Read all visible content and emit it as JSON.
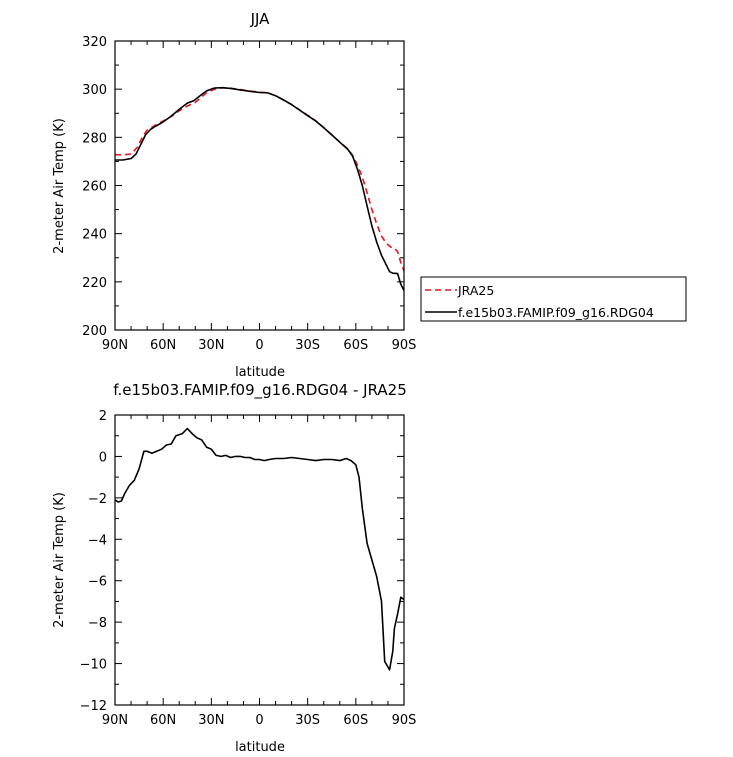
{
  "chart_data": [
    {
      "type": "line",
      "title": "JJA",
      "xlabel": "latitude",
      "ylabel": "2-meter Air Temp (K)",
      "xlim": [
        90,
        -90
      ],
      "ylim": [
        200,
        320
      ],
      "x_ticks": [
        {
          "value": 90,
          "label": "90N"
        },
        {
          "value": 60,
          "label": "60N"
        },
        {
          "value": 30,
          "label": "30N"
        },
        {
          "value": 0,
          "label": "0"
        },
        {
          "value": -30,
          "label": "30S"
        },
        {
          "value": -60,
          "label": "60S"
        },
        {
          "value": -90,
          "label": "90S"
        }
      ],
      "y_ticks": [
        200,
        220,
        240,
        260,
        280,
        300,
        320
      ],
      "legend_position": "right",
      "series": [
        {
          "name": "JRA25",
          "color": "#e8151b",
          "dash": "dashed",
          "points": [
            [
              90,
              272.8
            ],
            [
              85,
              272.7
            ],
            [
              80,
              273.1
            ],
            [
              76,
              276
            ],
            [
              73,
              280
            ],
            [
              70,
              283
            ],
            [
              65,
              285
            ],
            [
              60,
              286.8
            ],
            [
              55,
              288.6
            ],
            [
              50,
              291
            ],
            [
              45,
              293
            ],
            [
              40,
              294.5
            ],
            [
              37,
              296.2
            ],
            [
              33,
              298.5
            ],
            [
              28,
              300
            ],
            [
              23,
              300.6
            ],
            [
              18,
              300.4
            ],
            [
              12,
              299.8
            ],
            [
              6,
              299.2
            ],
            [
              0,
              298.8
            ],
            [
              -5,
              298.5
            ],
            [
              -10,
              297.3
            ],
            [
              -15,
              295.5
            ],
            [
              -20,
              293.6
            ],
            [
              -25,
              291.4
            ],
            [
              -30,
              289.2
            ],
            [
              -35,
              286.9
            ],
            [
              -40,
              284.1
            ],
            [
              -45,
              281
            ],
            [
              -50,
              278
            ],
            [
              -55,
              275.3
            ],
            [
              -58,
              272.5
            ],
            [
              -61,
              268.5
            ],
            [
              -64,
              263.5
            ],
            [
              -67,
              257
            ],
            [
              -70,
              250
            ],
            [
              -73,
              244
            ],
            [
              -76,
              239
            ],
            [
              -79,
              236
            ],
            [
              -82,
              234.3
            ],
            [
              -84,
              234
            ],
            [
              -86,
              232.5
            ],
            [
              -88,
              228
            ],
            [
              -90,
              224.5
            ]
          ]
        },
        {
          "name": "f.e15b03.FAMIP.f09_g16.RDG04",
          "color": "#000000",
          "dash": "solid",
          "points": [
            [
              90,
              270.6
            ],
            [
              85,
              270.6
            ],
            [
              80,
              271.2
            ],
            [
              77,
              273
            ],
            [
              74,
              277
            ],
            [
              71,
              281
            ],
            [
              68,
              283.2
            ],
            [
              65,
              284.5
            ],
            [
              60,
              286.4
            ],
            [
              55,
              288.8
            ],
            [
              50,
              291.6
            ],
            [
              45,
              294.2
            ],
            [
              41,
              295.2
            ],
            [
              37,
              297.3
            ],
            [
              33,
              299.3
            ],
            [
              28,
              300.5
            ],
            [
              23,
              300.6
            ],
            [
              18,
              300.3
            ],
            [
              12,
              299.7
            ],
            [
              6,
              299.1
            ],
            [
              0,
              298.6
            ],
            [
              -5,
              298.5
            ],
            [
              -10,
              297.3
            ],
            [
              -15,
              295.5
            ],
            [
              -20,
              293.6
            ],
            [
              -25,
              291.3
            ],
            [
              -30,
              289
            ],
            [
              -35,
              286.8
            ],
            [
              -40,
              284
            ],
            [
              -45,
              281
            ],
            [
              -50,
              278
            ],
            [
              -55,
              275
            ],
            [
              -58,
              272.2
            ],
            [
              -61,
              266.8
            ],
            [
              -64,
              260
            ],
            [
              -67,
              251.5
            ],
            [
              -70,
              243.2
            ],
            [
              -73,
              236.5
            ],
            [
              -76,
              231
            ],
            [
              -79,
              227
            ],
            [
              -81,
              224.2
            ],
            [
              -83,
              223.6
            ],
            [
              -86,
              223.4
            ],
            [
              -88,
              219
            ],
            [
              -90,
              216.4
            ]
          ]
        }
      ]
    },
    {
      "type": "line",
      "title": "f.e15b03.FAMIP.f09_g16.RDG04 - JRA25",
      "xlabel": "latitude",
      "ylabel": "2-meter Air Temp (K)",
      "xlim": [
        90,
        -90
      ],
      "ylim": [
        -12,
        2
      ],
      "x_ticks": [
        {
          "value": 90,
          "label": "90N"
        },
        {
          "value": 60,
          "label": "60N"
        },
        {
          "value": 30,
          "label": "30N"
        },
        {
          "value": 0,
          "label": "0"
        },
        {
          "value": -30,
          "label": "30S"
        },
        {
          "value": -60,
          "label": "60S"
        },
        {
          "value": -90,
          "label": "90S"
        }
      ],
      "y_ticks": [
        -12,
        -10,
        -8,
        -6,
        -4,
        -2,
        0,
        2
      ],
      "series": [
        {
          "color": "#000000",
          "dash": "solid",
          "points": [
            [
              90,
              -2.1
            ],
            [
              88,
              -2.2
            ],
            [
              86,
              -2.15
            ],
            [
              84,
              -1.8
            ],
            [
              81,
              -1.4
            ],
            [
              78,
              -1.15
            ],
            [
              75,
              -0.6
            ],
            [
              72,
              0.25
            ],
            [
              70,
              0.25
            ],
            [
              67,
              0.15
            ],
            [
              64,
              0.25
            ],
            [
              61,
              0.35
            ],
            [
              58,
              0.55
            ],
            [
              55,
              0.6
            ],
            [
              52,
              1
            ],
            [
              48,
              1.1
            ],
            [
              45,
              1.35
            ],
            [
              42,
              1.1
            ],
            [
              39,
              0.9
            ],
            [
              36,
              0.8
            ],
            [
              33,
              0.45
            ],
            [
              30,
              0.35
            ],
            [
              27,
              0.05
            ],
            [
              24,
              0
            ],
            [
              21,
              0.05
            ],
            [
              18,
              -0.05
            ],
            [
              15,
              0
            ],
            [
              12,
              0
            ],
            [
              9,
              -0.05
            ],
            [
              6,
              -0.05
            ],
            [
              3,
              -0.15
            ],
            [
              0,
              -0.15
            ],
            [
              -3,
              -0.2
            ],
            [
              -6,
              -0.15
            ],
            [
              -10,
              -0.1
            ],
            [
              -15,
              -0.1
            ],
            [
              -20,
              -0.05
            ],
            [
              -25,
              -0.1
            ],
            [
              -30,
              -0.15
            ],
            [
              -35,
              -0.2
            ],
            [
              -40,
              -0.15
            ],
            [
              -45,
              -0.15
            ],
            [
              -50,
              -0.2
            ],
            [
              -54,
              -0.1
            ],
            [
              -57,
              -0.2
            ],
            [
              -60,
              -0.4
            ],
            [
              -62,
              -1
            ],
            [
              -64,
              -2.5
            ],
            [
              -67,
              -4.2
            ],
            [
              -70,
              -5
            ],
            [
              -73,
              -5.8
            ],
            [
              -76,
              -7
            ],
            [
              -78,
              -9.9
            ],
            [
              -81,
              -10.3
            ],
            [
              -83,
              -9.4
            ],
            [
              -84,
              -8.3
            ],
            [
              -86,
              -7.6
            ],
            [
              -88,
              -6.8
            ],
            [
              -90,
              -6.9
            ]
          ]
        }
      ]
    }
  ]
}
